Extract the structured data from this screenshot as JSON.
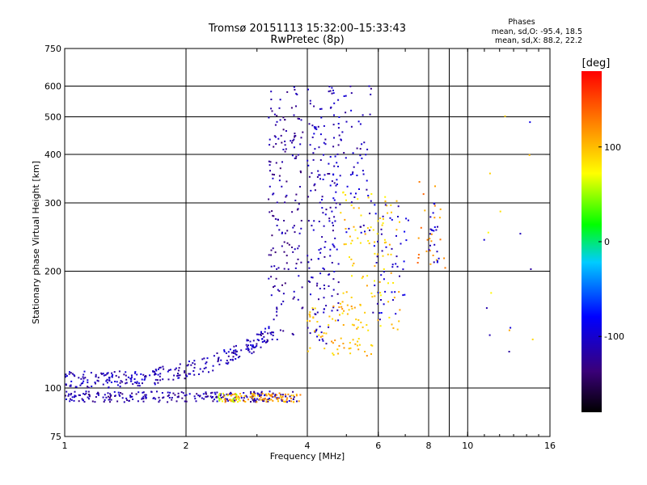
{
  "chart_data": {
    "type": "scatter",
    "title": "Tromsø 20151113 15:32:00–15:33:43",
    "subtitle": "RwPretec (8p)",
    "phases_box": {
      "heading": "Phases",
      "line1": "mean, sd,O:  -95.4, 18.5",
      "line2": "mean, sd,X:   88.2, 22.2"
    },
    "xlabel": "Frequency [MHz]",
    "ylabel": "Stationary phase Virtual Height [km]",
    "x_scale": "log",
    "y_scale": "log",
    "xlim": [
      1,
      16
    ],
    "ylim": [
      75,
      750
    ],
    "grid": true,
    "x_ticks": [
      1,
      2,
      4,
      6,
      8,
      10,
      16
    ],
    "x_tick_labels": [
      "1",
      "2",
      "4",
      "6",
      "8",
      "10",
      "16"
    ],
    "x_grid": [
      2,
      4,
      6,
      8,
      9,
      10
    ],
    "y_ticks": [
      75,
      100,
      200,
      300,
      400,
      500,
      600,
      750
    ],
    "y_tick_labels": [
      "75",
      "100",
      "200",
      "300",
      "400",
      "500",
      "600",
      "750"
    ],
    "y_grid": [
      100,
      200,
      300,
      400,
      500,
      600
    ],
    "colorbar": {
      "label": "[deg]",
      "range": [
        -180,
        180
      ],
      "ticks": [
        100,
        0,
        -100
      ],
      "tick_labels": [
        "100",
        "0",
        "-100"
      ]
    },
    "series": [
      {
        "color_field": "phase",
        "clusters": [
          {
            "x": [
              1.0,
              3.8
            ],
            "y": [
              92,
              98
            ],
            "phase": -115,
            "n": 240,
            "shape": "flat"
          },
          {
            "x": [
              2.45,
              3.85
            ],
            "y": [
              92,
              97
            ],
            "phase": 110,
            "n": 90,
            "shape": "flat"
          },
          {
            "x": [
              2.4,
              2.75
            ],
            "y": [
              92,
              97
            ],
            "phase": 60,
            "n": 20,
            "shape": "flat"
          },
          {
            "x": [
              1.0,
              3.3
            ],
            "y": [
              105,
              140
            ],
            "phase": -110,
            "n": 280,
            "shape": "rise"
          },
          {
            "x": [
              3.2,
              3.9
            ],
            "y": [
              130,
              600
            ],
            "phase": -120,
            "n": 170,
            "shape": "wall"
          },
          {
            "x": [
              4.0,
              4.8
            ],
            "y": [
              130,
              600
            ],
            "phase": -110,
            "n": 170,
            "shape": "box"
          },
          {
            "x": [
              4.0,
              5.8
            ],
            "y": [
              120,
              165
            ],
            "phase": 100,
            "n": 70,
            "shape": "box"
          },
          {
            "x": [
              4.6,
              5.8
            ],
            "y": [
              250,
              600
            ],
            "phase": -110,
            "n": 70,
            "shape": "box"
          },
          {
            "x": [
              4.8,
              6.8
            ],
            "y": [
              140,
              320
            ],
            "phase": 95,
            "n": 100,
            "shape": "box"
          },
          {
            "x": [
              5.8,
              7.2
            ],
            "y": [
              150,
              300
            ],
            "phase": -100,
            "n": 50,
            "shape": "box"
          },
          {
            "x": [
              7.5,
              8.8
            ],
            "y": [
              200,
              340
            ],
            "phase": 120,
            "n": 25,
            "shape": "box"
          },
          {
            "x": [
              8.0,
              8.5
            ],
            "y": [
              210,
              300
            ],
            "phase": -100,
            "n": 20,
            "shape": "box"
          },
          {
            "x": [
              10.5,
              14.5
            ],
            "y": [
              100,
              600
            ],
            "phase": 90,
            "n": 8,
            "shape": "box"
          },
          {
            "x": [
              10.5,
              14.5
            ],
            "y": [
              100,
              500
            ],
            "phase": -110,
            "n": 8,
            "shape": "box"
          }
        ]
      }
    ]
  }
}
